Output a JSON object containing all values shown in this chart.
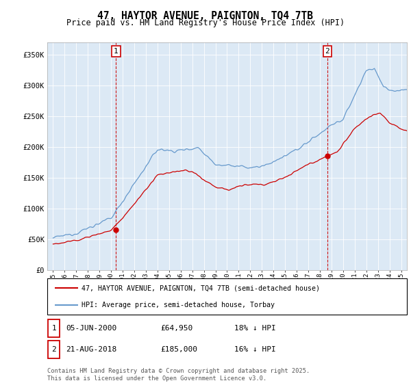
{
  "title": "47, HAYTOR AVENUE, PAIGNTON, TQ4 7TB",
  "subtitle": "Price paid vs. HM Land Registry's House Price Index (HPI)",
  "legend_line1": "47, HAYTOR AVENUE, PAIGNTON, TQ4 7TB (semi-detached house)",
  "legend_line2": "HPI: Average price, semi-detached house, Torbay",
  "annotation1_label": "1",
  "annotation1_date": "05-JUN-2000",
  "annotation1_price": "£64,950",
  "annotation1_hpi": "18% ↓ HPI",
  "annotation2_label": "2",
  "annotation2_date": "21-AUG-2018",
  "annotation2_price": "£185,000",
  "annotation2_hpi": "16% ↓ HPI",
  "footnote": "Contains HM Land Registry data © Crown copyright and database right 2025.\nThis data is licensed under the Open Government Licence v3.0.",
  "red_color": "#cc0000",
  "blue_color": "#6699cc",
  "bg_color": "#dce9f5",
  "marker1_x": 2000.43,
  "marker2_x": 2018.64,
  "ylim": [
    0,
    370000
  ],
  "xlim": [
    1994.5,
    2025.5
  ],
  "yticks": [
    0,
    50000,
    100000,
    150000,
    200000,
    250000,
    300000,
    350000
  ],
  "yticklabels": [
    "£0",
    "£50K",
    "£100K",
    "£150K",
    "£200K",
    "£250K",
    "£300K",
    "£350K"
  ],
  "xticks": [
    1995,
    1996,
    1997,
    1998,
    1999,
    2000,
    2001,
    2002,
    2003,
    2004,
    2005,
    2006,
    2007,
    2008,
    2009,
    2010,
    2011,
    2012,
    2013,
    2014,
    2015,
    2016,
    2017,
    2018,
    2019,
    2020,
    2021,
    2022,
    2023,
    2024,
    2025
  ]
}
